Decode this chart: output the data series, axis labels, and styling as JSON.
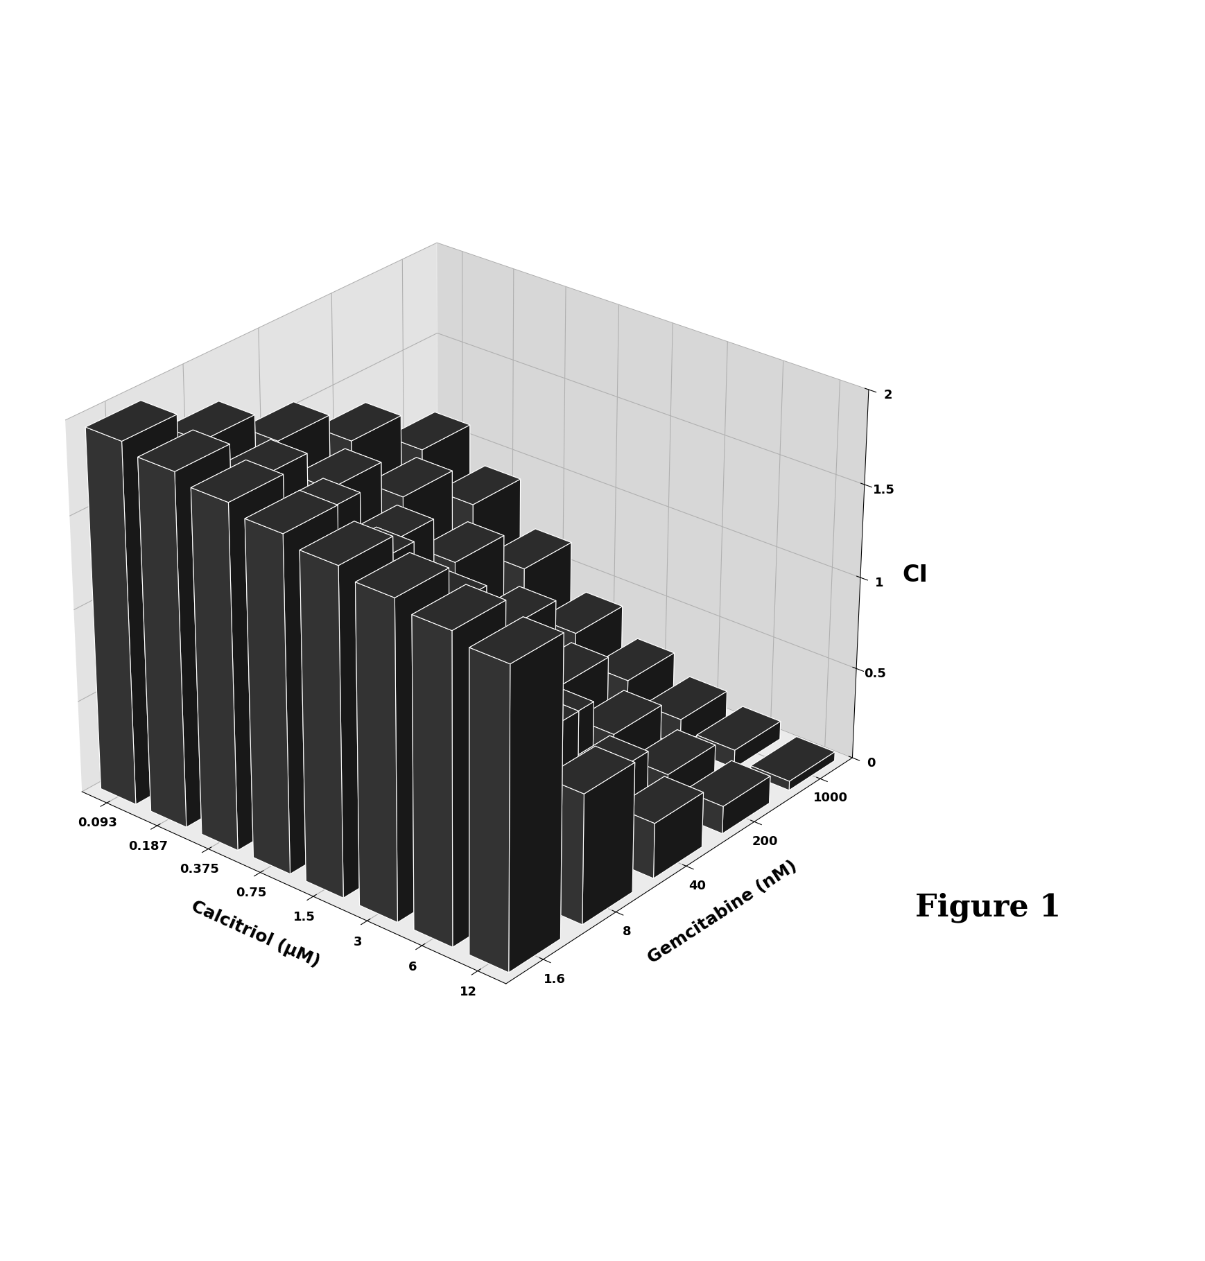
{
  "xlabel": "Calcitriol (μM)",
  "ylabel": "Gemcitabine (nM)",
  "zlabel": "CI",
  "calcitriol_labels": [
    "0.093",
    "0.187",
    "0.375",
    "0.75",
    "1.5",
    "3",
    "6",
    "12"
  ],
  "gemcitabine_labels": [
    "1.6",
    "8",
    "40",
    "200",
    "1000"
  ],
  "ci_data": [
    [
      1.95,
      1.9,
      1.85,
      1.8,
      1.75,
      1.7,
      1.65,
      1.6
    ],
    [
      1.75,
      1.65,
      1.55,
      1.4,
      1.2,
      1.0,
      0.85,
      0.7
    ],
    [
      1.55,
      1.4,
      1.2,
      0.95,
      0.75,
      0.55,
      0.4,
      0.3
    ],
    [
      1.35,
      1.15,
      0.9,
      0.65,
      0.45,
      0.3,
      0.2,
      0.15
    ],
    [
      1.1,
      0.9,
      0.65,
      0.4,
      0.25,
      0.15,
      0.1,
      0.05
    ]
  ],
  "bar_color": "#3a3a3a",
  "background_color": "#ffffff",
  "zlim": [
    0,
    2
  ],
  "zticks": [
    0,
    0.5,
    1,
    1.5,
    2
  ],
  "figure_label": "Figure 1",
  "figure_label_fontsize": 32,
  "axis_label_fontsize": 18,
  "tick_label_fontsize": 13,
  "elev": 28,
  "azim": -50
}
